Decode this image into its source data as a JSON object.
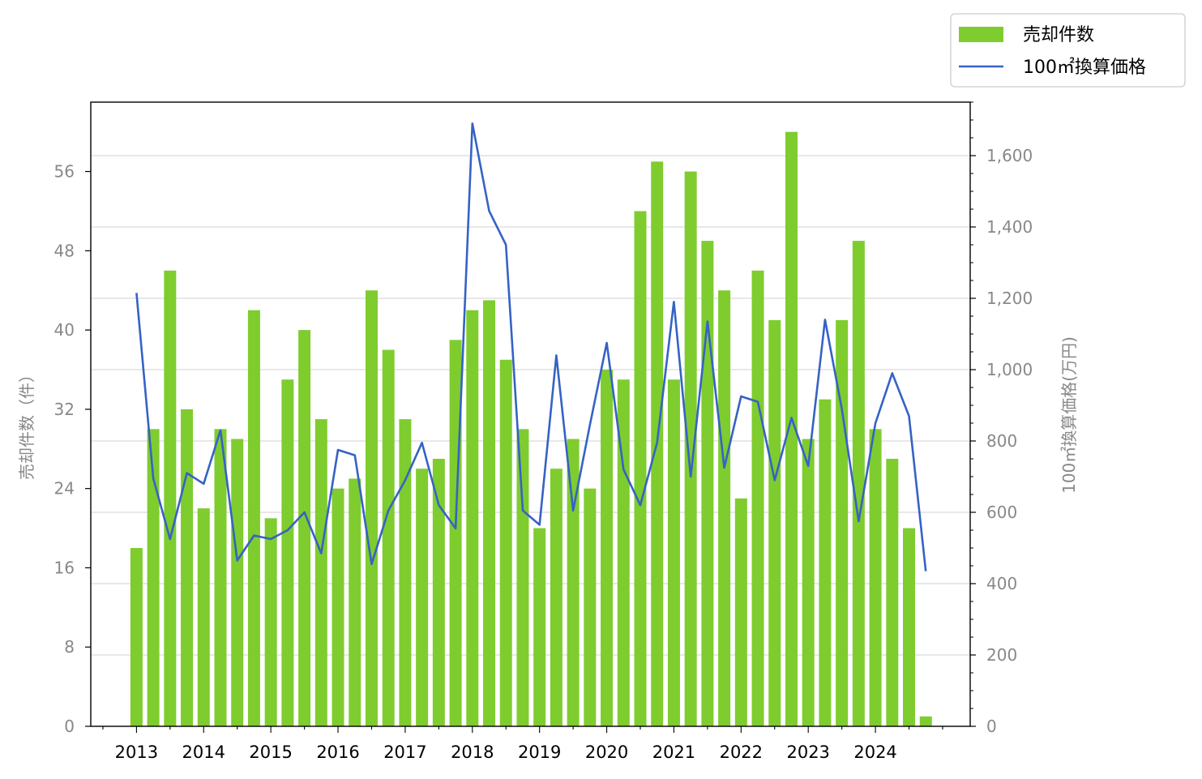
{
  "chart_data": {
    "type": "bar+line",
    "x_tick_labels": [
      "2013",
      "2014",
      "2015",
      "2016",
      "2017",
      "2018",
      "2019",
      "2020",
      "2021",
      "2022",
      "2023",
      "2024"
    ],
    "left_axis": {
      "label": "売却件数（件）",
      "ylim": [
        0,
        63
      ],
      "ticks": [
        0,
        8,
        16,
        24,
        32,
        40,
        48,
        56
      ]
    },
    "right_axis": {
      "label": "100㎡換算価格(万円)",
      "ylim": [
        0,
        1750
      ],
      "ticks": [
        0,
        200,
        400,
        600,
        800,
        1000,
        1200,
        1400,
        1600
      ],
      "tick_labels": [
        "0",
        "200",
        "400",
        "600",
        "800",
        "1,000",
        "1,200",
        "1,400",
        "1,600"
      ]
    },
    "grid": "horizontal (right axis)",
    "legend_position": "top-right, outside plot",
    "series": [
      {
        "name": "売却件数",
        "kind": "bar",
        "axis": "left",
        "color": "#7fcc2f",
        "values": [
          18,
          30,
          46,
          32,
          22,
          30,
          29,
          42,
          21,
          35,
          40,
          31,
          24,
          25,
          44,
          38,
          31,
          26,
          27,
          39,
          42,
          43,
          37,
          30,
          20,
          26,
          29,
          24,
          36,
          35,
          52,
          57,
          35,
          56,
          49,
          44,
          23,
          46,
          41,
          60,
          29,
          33,
          41,
          49,
          30,
          27,
          20,
          1
        ]
      },
      {
        "name": "100㎡換算価格",
        "kind": "line",
        "axis": "right",
        "color": "#3563c4",
        "values": [
          1215,
          695,
          525,
          710,
          680,
          830,
          465,
          535,
          525,
          550,
          600,
          485,
          775,
          760,
          455,
          605,
          690,
          795,
          620,
          555,
          1690,
          1445,
          1350,
          605,
          565,
          1040,
          605,
          845,
          1075,
          720,
          620,
          795,
          1190,
          700,
          1135,
          725,
          925,
          910,
          690,
          865,
          730,
          1140,
          890,
          575,
          850,
          990,
          870,
          435
        ]
      }
    ]
  }
}
